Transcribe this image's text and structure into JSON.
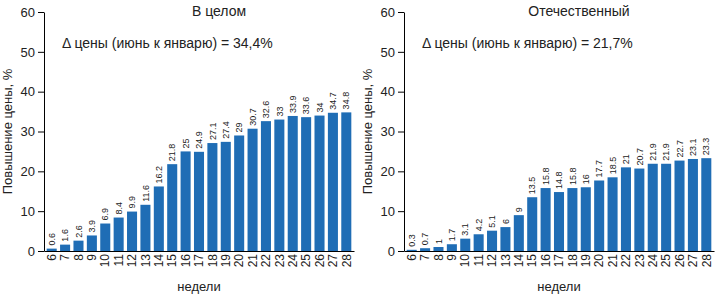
{
  "chart_data": [
    {
      "type": "bar",
      "title": "В целом",
      "annotations": [
        "Δ цены (июнь к январю) = 34,4%"
      ],
      "x_label": "недели",
      "y_label": "Повышение цены, %",
      "categories": [
        "6",
        "7",
        "8",
        "9",
        "10",
        "11",
        "12",
        "13",
        "14",
        "15",
        "16",
        "17",
        "18",
        "19",
        "20",
        "21",
        "22",
        "23",
        "24",
        "25",
        "26",
        "27",
        "28"
      ],
      "values": [
        0.6,
        1.6,
        2.6,
        3.9,
        6.9,
        8.4,
        9.9,
        11.6,
        16.2,
        21.8,
        25.0,
        24.9,
        27.1,
        27.4,
        29.0,
        30.7,
        32.6,
        33.0,
        33.9,
        33.6,
        34.0,
        34.7,
        34.8
      ],
      "color": "#1f6db5",
      "ylim": [
        0,
        60
      ],
      "yticks": [
        0,
        10,
        20,
        30,
        40,
        50,
        60
      ],
      "grid": false,
      "data_labels": true
    },
    {
      "type": "bar",
      "title": "Отечественный",
      "annotations": [
        "Δ цены (июнь к январю) = 21,7%"
      ],
      "x_label": "недели",
      "y_label": "Повышение цены, %",
      "categories": [
        "6",
        "7",
        "8",
        "9",
        "10",
        "11",
        "12",
        "13",
        "14",
        "15",
        "16",
        "17",
        "18",
        "19",
        "20",
        "21",
        "22",
        "23",
        "24",
        "25",
        "26",
        "27",
        "28"
      ],
      "values": [
        0.3,
        0.7,
        1.0,
        1.7,
        3.1,
        4.2,
        5.1,
        6.0,
        9.0,
        13.5,
        15.8,
        14.8,
        15.8,
        16.0,
        17.7,
        18.5,
        21.0,
        20.7,
        21.9,
        21.9,
        22.7,
        23.1,
        23.3
      ],
      "color": "#1f6db5",
      "ylim": [
        0,
        60
      ],
      "yticks": [
        0,
        10,
        20,
        30,
        40,
        50,
        60
      ],
      "grid": false,
      "data_labels": true
    }
  ]
}
